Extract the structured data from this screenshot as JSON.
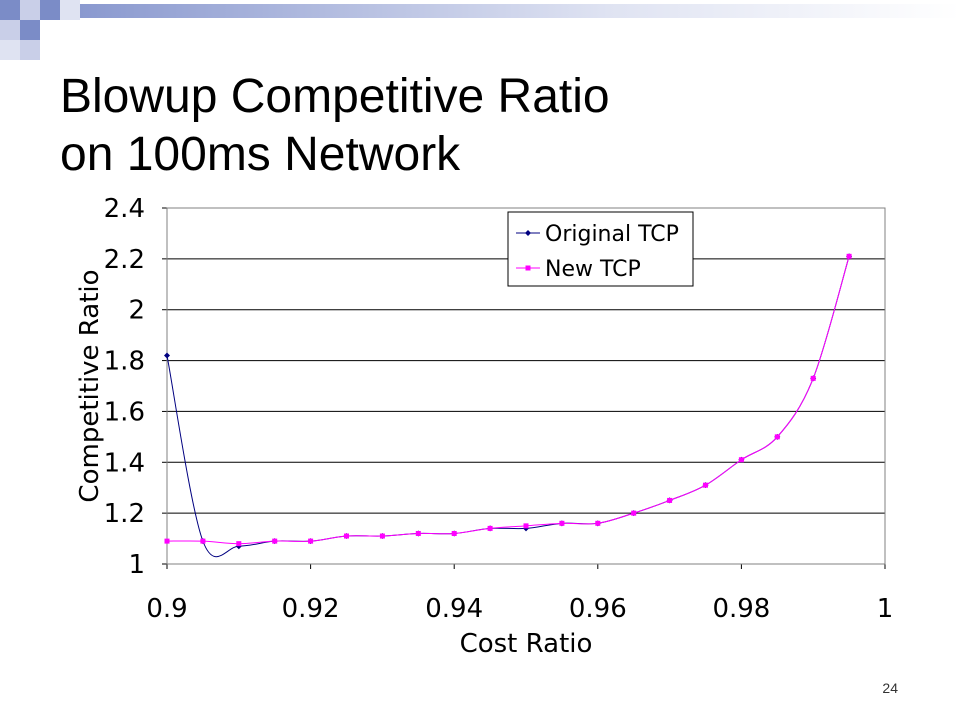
{
  "slide": {
    "title_line1": "Blowup Competitive Ratio",
    "title_line2": "on 100ms Network",
    "page_number": "24"
  },
  "colors": {
    "accent": "#7b8cc7",
    "accent_light": "#c9cfe8",
    "series_original": "#000080",
    "series_new": "#ff00ff",
    "grid": "#000000"
  },
  "chart_data": {
    "type": "line",
    "xlabel": "Cost Ratio",
    "ylabel": "Competitive Ratio",
    "xlim": [
      0.9,
      1.0
    ],
    "ylim": [
      1.0,
      2.4
    ],
    "x_ticks": [
      "0.9",
      "0.92",
      "0.94",
      "0.96",
      "0.98",
      "1"
    ],
    "y_ticks": [
      "1",
      "1.2",
      "1.4",
      "1.6",
      "1.8",
      "2",
      "2.2",
      "2.4"
    ],
    "grid": "horizontal",
    "legend_position": "top-right",
    "series": [
      {
        "name": "Original TCP",
        "marker": "diamond",
        "color": "#000080",
        "x": [
          0.9,
          0.905,
          0.91,
          0.915,
          0.92,
          0.925,
          0.93,
          0.935,
          0.94,
          0.945,
          0.95,
          0.955,
          0.96,
          0.965,
          0.97,
          0.975,
          0.98,
          0.985,
          0.99,
          0.995
        ],
        "y": [
          1.82,
          1.09,
          1.07,
          1.09,
          1.09,
          1.11,
          1.11,
          1.12,
          1.12,
          1.14,
          1.14,
          1.16,
          1.16,
          1.2,
          1.25,
          1.31,
          1.41,
          1.5,
          1.73,
          2.21
        ]
      },
      {
        "name": "New TCP",
        "marker": "square",
        "color": "#ff00ff",
        "x": [
          0.9,
          0.905,
          0.91,
          0.915,
          0.92,
          0.925,
          0.93,
          0.935,
          0.94,
          0.945,
          0.95,
          0.955,
          0.96,
          0.965,
          0.97,
          0.975,
          0.98,
          0.985,
          0.99,
          0.995
        ],
        "y": [
          1.09,
          1.09,
          1.08,
          1.09,
          1.09,
          1.11,
          1.11,
          1.12,
          1.12,
          1.14,
          1.15,
          1.16,
          1.16,
          1.2,
          1.25,
          1.31,
          1.41,
          1.5,
          1.73,
          2.21
        ]
      }
    ]
  }
}
